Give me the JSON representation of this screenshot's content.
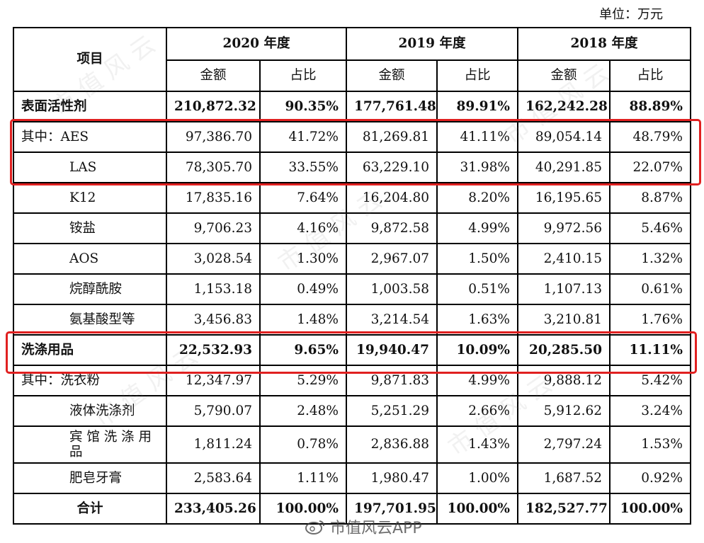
{
  "unit_label": "单位：万元",
  "header": {
    "item_label": "项目",
    "years": [
      "2020 年度",
      "2019 年度",
      "2018 年度"
    ],
    "amount_label": "金额",
    "ratio_label": "占比"
  },
  "rows": [
    {
      "label": "表面活性剂",
      "values": [
        "210,872.32",
        "90.35%",
        "177,761.48",
        "89.91%",
        "162,242.28",
        "88.89%"
      ]
    },
    {
      "label": "其中：AES",
      "values": [
        "97,386.70",
        "41.72%",
        "81,269.81",
        "41.11%",
        "89,054.14",
        "48.79%"
      ]
    },
    {
      "label": "LAS",
      "values": [
        "78,305.70",
        "33.55%",
        "63,229.10",
        "31.98%",
        "40,291.85",
        "22.07%"
      ]
    },
    {
      "label": "K12",
      "values": [
        "17,835.16",
        "7.64%",
        "16,204.80",
        "8.20%",
        "16,195.65",
        "8.87%"
      ]
    },
    {
      "label": "铵盐",
      "values": [
        "9,706.23",
        "4.16%",
        "9,872.58",
        "4.99%",
        "9,972.56",
        "5.46%"
      ]
    },
    {
      "label": "AOS",
      "values": [
        "3,028.54",
        "1.30%",
        "2,967.07",
        "1.50%",
        "2,410.15",
        "1.32%"
      ]
    },
    {
      "label": "烷醇酰胺",
      "values": [
        "1,153.18",
        "0.49%",
        "1,003.58",
        "0.51%",
        "1,107.13",
        "0.61%"
      ]
    },
    {
      "label": "氨基酸型等",
      "values": [
        "3,456.83",
        "1.48%",
        "3,214.54",
        "1.63%",
        "3,210.81",
        "1.76%"
      ]
    },
    {
      "label": "洗涤用品",
      "values": [
        "22,532.93",
        "9.65%",
        "19,940.47",
        "10.09%",
        "20,285.50",
        "11.11%"
      ]
    },
    {
      "label": "其中：洗衣粉",
      "values": [
        "12,347.97",
        "5.29%",
        "9,871.83",
        "4.99%",
        "9,888.12",
        "5.42%"
      ]
    },
    {
      "label": "液体洗涤剂",
      "values": [
        "5,790.07",
        "2.48%",
        "5,251.29",
        "2.66%",
        "5,912.62",
        "3.24%"
      ]
    },
    {
      "label": "宾 馆 洗 涤 用 品",
      "values": [
        "1,811.24",
        "0.78%",
        "2,836.88",
        "1.43%",
        "2,797.24",
        "1.53%"
      ]
    },
    {
      "label": "肥皂牙膏",
      "values": [
        "2,583.64",
        "1.11%",
        "1,980.47",
        "1.00%",
        "1,687.52",
        "0.92%"
      ]
    },
    {
      "label": "合计",
      "values": [
        "233,405.26",
        "100.00%",
        "197,701.95",
        "100.00%",
        "182,527.77",
        "100.00%"
      ]
    }
  ],
  "watermark_brand": "市值风云APP",
  "colors": {
    "highlight": "#e02020",
    "border": "#000000"
  }
}
